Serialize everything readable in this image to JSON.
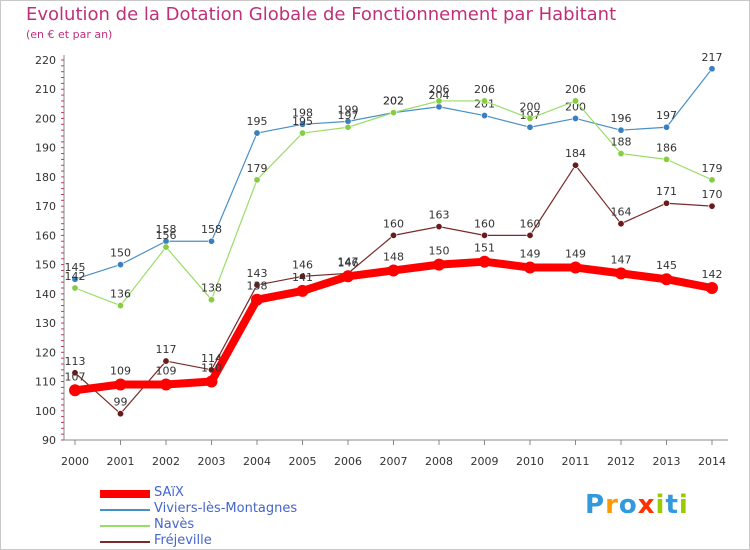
{
  "chart_data": {
    "type": "line",
    "title": "Evolution de la Dotation Globale de Fonctionnement par Habitant",
    "subtitle": "(en € et par an)",
    "xlabel": "",
    "ylabel": "",
    "ylim": [
      90,
      220
    ],
    "yticks": [
      90,
      100,
      110,
      120,
      130,
      140,
      150,
      160,
      170,
      180,
      190,
      200,
      210,
      220
    ],
    "categories": [
      "2000",
      "2001",
      "2002",
      "2003",
      "2004",
      "2005",
      "2006",
      "2007",
      "2008",
      "2009",
      "2010",
      "2011",
      "2012",
      "2013",
      "2014"
    ],
    "series": [
      {
        "name": "Viviers-lès-Montagnes",
        "color": "#4a90c8",
        "dot": "#3a7fc0",
        "emphasis": false,
        "values": [
          145,
          150,
          158,
          158,
          195,
          198,
          199,
          202,
          204,
          201,
          197,
          200,
          196,
          197,
          217
        ]
      },
      {
        "name": "Navès",
        "color": "#99dd66",
        "dot": "#88cc44",
        "emphasis": false,
        "values": [
          142,
          136,
          156,
          138,
          179,
          195,
          197,
          202,
          206,
          206,
          200,
          206,
          188,
          186,
          179
        ]
      },
      {
        "name": "Fréjeville",
        "color": "#7a2a2a",
        "dot": "#6a1a1a",
        "emphasis": false,
        "values": [
          113,
          99,
          117,
          114,
          143,
          146,
          147,
          160,
          163,
          160,
          160,
          184,
          164,
          171,
          170
        ]
      },
      {
        "name": "SAïX",
        "color": "#ff0000",
        "dot": "#ff0000",
        "emphasis": true,
        "values": [
          107,
          109,
          109,
          110,
          138,
          141,
          146,
          148,
          150,
          151,
          149,
          149,
          147,
          145,
          142
        ]
      }
    ],
    "legend_order": [
      "SAïX",
      "Viviers-lès-Montagnes",
      "Navès",
      "Fréjeville"
    ],
    "legend_position": "bottom-left",
    "grid": false
  },
  "logo": {
    "letters": [
      "P",
      "r",
      "o",
      "x",
      "i",
      "t",
      "i"
    ],
    "colors": [
      "#3399dd",
      "#ff9900",
      "#3399dd",
      "#ff3300",
      "#99cc00",
      "#3399dd",
      "#99cc00"
    ]
  }
}
